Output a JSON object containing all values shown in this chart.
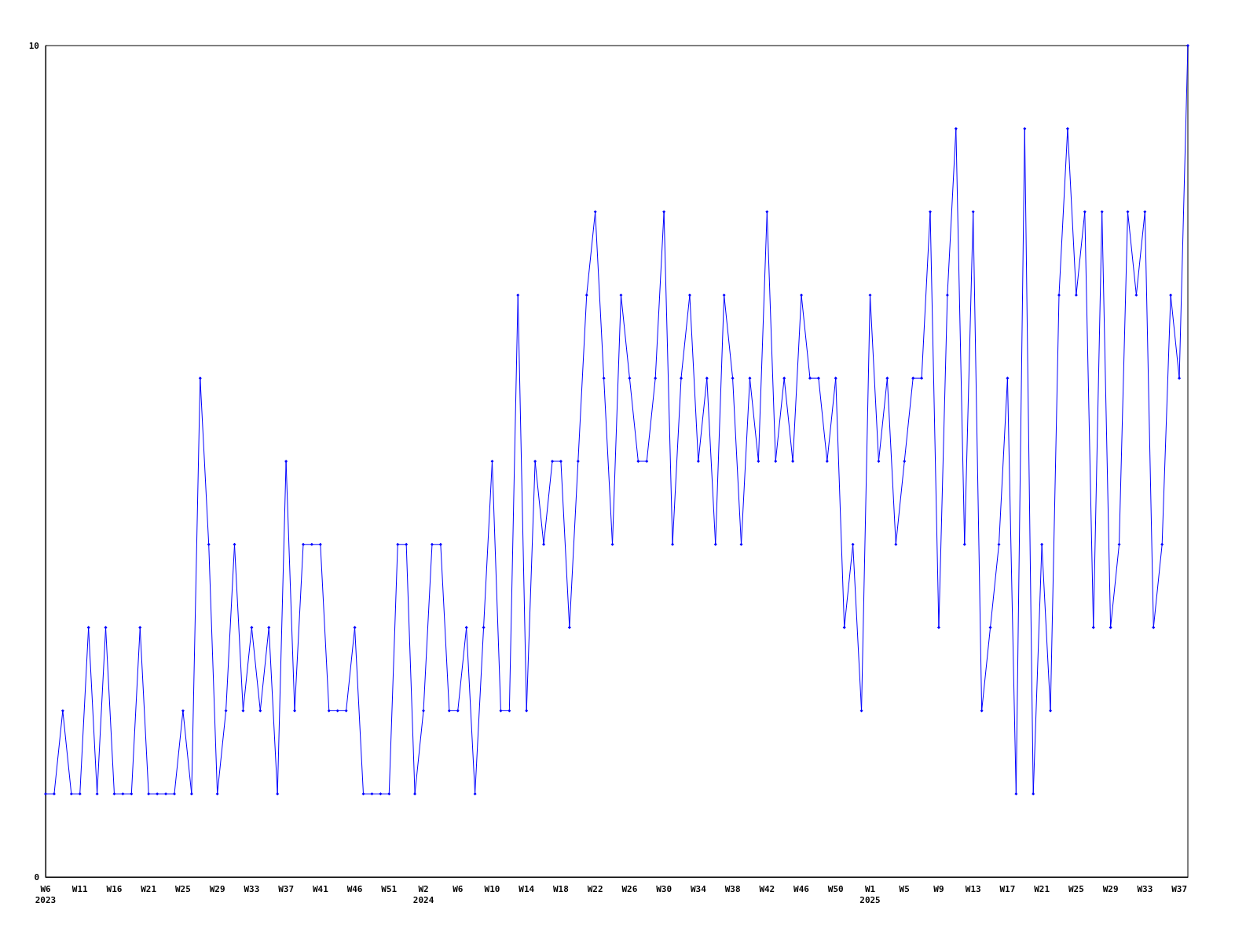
{
  "chart_data": {
    "type": "line",
    "categories": [
      "W6\n2023",
      null,
      null,
      null,
      "W11",
      null,
      null,
      null,
      "W16",
      null,
      null,
      null,
      "W21",
      null,
      null,
      null,
      "W25",
      null,
      null,
      null,
      "W29",
      null,
      null,
      null,
      "W33",
      null,
      null,
      null,
      "W37",
      null,
      null,
      null,
      "W41",
      null,
      null,
      null,
      "W46",
      null,
      null,
      null,
      "W51",
      null,
      null,
      null,
      "W2\n2024",
      null,
      null,
      null,
      "W6",
      null,
      null,
      null,
      "W10",
      null,
      null,
      null,
      "W14",
      null,
      null,
      null,
      "W18",
      null,
      null,
      null,
      "W22",
      null,
      null,
      null,
      "W26",
      null,
      null,
      null,
      "W30",
      null,
      null,
      null,
      "W34",
      null,
      null,
      null,
      "W38",
      null,
      null,
      null,
      "W42",
      null,
      null,
      null,
      "W46",
      null,
      null,
      null,
      "W50",
      null,
      null,
      null,
      "W1\n2025",
      null,
      null,
      null,
      "W5",
      null,
      null,
      null,
      "W9",
      null,
      null,
      null,
      "W13",
      null,
      null,
      null,
      "W17",
      null,
      null,
      null,
      "W21",
      null,
      null,
      null,
      "W25",
      null,
      null,
      null,
      "W29",
      null,
      null,
      null,
      "W33",
      null,
      null,
      null,
      "W37",
      null
    ],
    "series": [
      {
        "color": "#0000ff",
        "values": [
          1,
          1,
          2,
          1,
          1,
          3,
          1,
          3,
          1,
          1,
          1,
          3,
          1,
          1,
          1,
          1,
          2,
          1,
          6,
          4,
          1,
          2,
          4,
          2,
          3,
          2,
          3,
          1,
          5,
          2,
          4,
          4,
          4,
          2,
          2,
          2,
          3,
          1,
          1,
          1,
          1,
          4,
          4,
          1,
          2,
          4,
          4,
          2,
          2,
          3,
          1,
          3,
          5,
          2,
          2,
          7,
          2,
          5,
          4,
          5,
          5,
          3,
          5,
          7,
          8,
          6,
          4,
          7,
          6,
          5,
          5,
          6,
          8,
          4,
          6,
          7,
          5,
          6,
          4,
          7,
          6,
          4,
          6,
          5,
          8,
          5,
          6,
          5,
          7,
          6,
          6,
          5,
          6,
          3,
          4,
          2,
          7,
          5,
          6,
          4,
          5,
          6,
          6,
          8,
          3,
          7,
          9,
          4,
          8,
          2,
          3,
          4,
          6,
          1,
          9,
          1,
          4,
          2,
          7,
          9,
          7,
          8,
          3,
          8,
          3,
          4,
          8,
          7,
          8,
          3,
          4,
          7,
          6,
          10
        ]
      }
    ],
    "ylim": [
      0,
      10
    ],
    "yticks": [
      0,
      10
    ],
    "grid": false,
    "marker": "diamond",
    "line_style": "solid"
  }
}
